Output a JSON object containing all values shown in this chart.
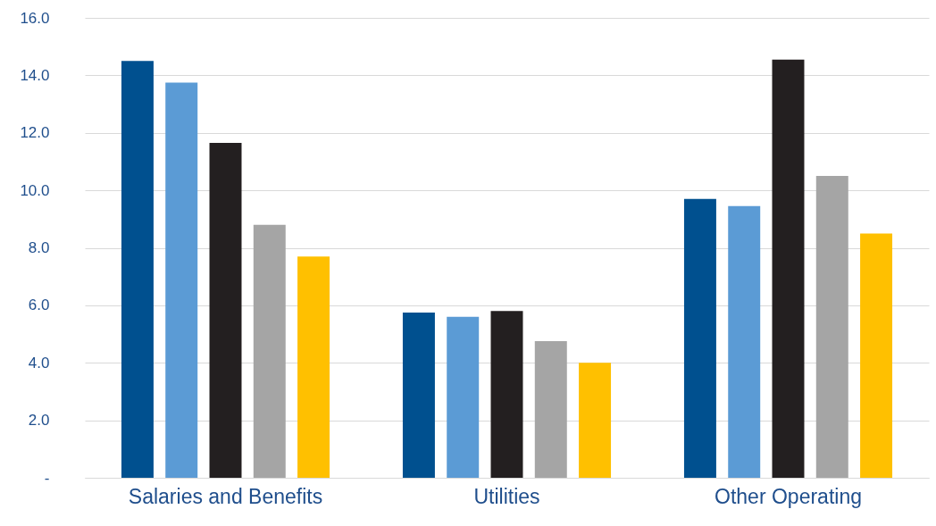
{
  "chart_data": {
    "type": "bar",
    "categories": [
      "Salaries and Benefits",
      "Utilities",
      "Other Operating"
    ],
    "series": [
      {
        "color": "#00508f",
        "values": [
          14.5,
          5.75,
          9.7
        ]
      },
      {
        "color": "#5b9bd5",
        "values": [
          13.75,
          5.6,
          9.45
        ]
      },
      {
        "color": "#231f20",
        "values": [
          11.65,
          5.8,
          14.55
        ]
      },
      {
        "color": "#a5a5a5",
        "values": [
          8.8,
          4.75,
          10.5
        ]
      },
      {
        "color": "#ffc000",
        "values": [
          7.7,
          4.0,
          8.5
        ]
      }
    ],
    "ylim": [
      0,
      16
    ],
    "yticks": [
      {
        "value": 0,
        "label": "-"
      },
      {
        "value": 2,
        "label": "2.0"
      },
      {
        "value": 4,
        "label": "4.0"
      },
      {
        "value": 6,
        "label": "6.0"
      },
      {
        "value": 8,
        "label": "8.0"
      },
      {
        "value": 10,
        "label": "10.0"
      },
      {
        "value": 12,
        "label": "12.0"
      },
      {
        "value": 14,
        "label": "14.0"
      },
      {
        "value": 16,
        "label": "16.0"
      }
    ],
    "grid": "y"
  }
}
